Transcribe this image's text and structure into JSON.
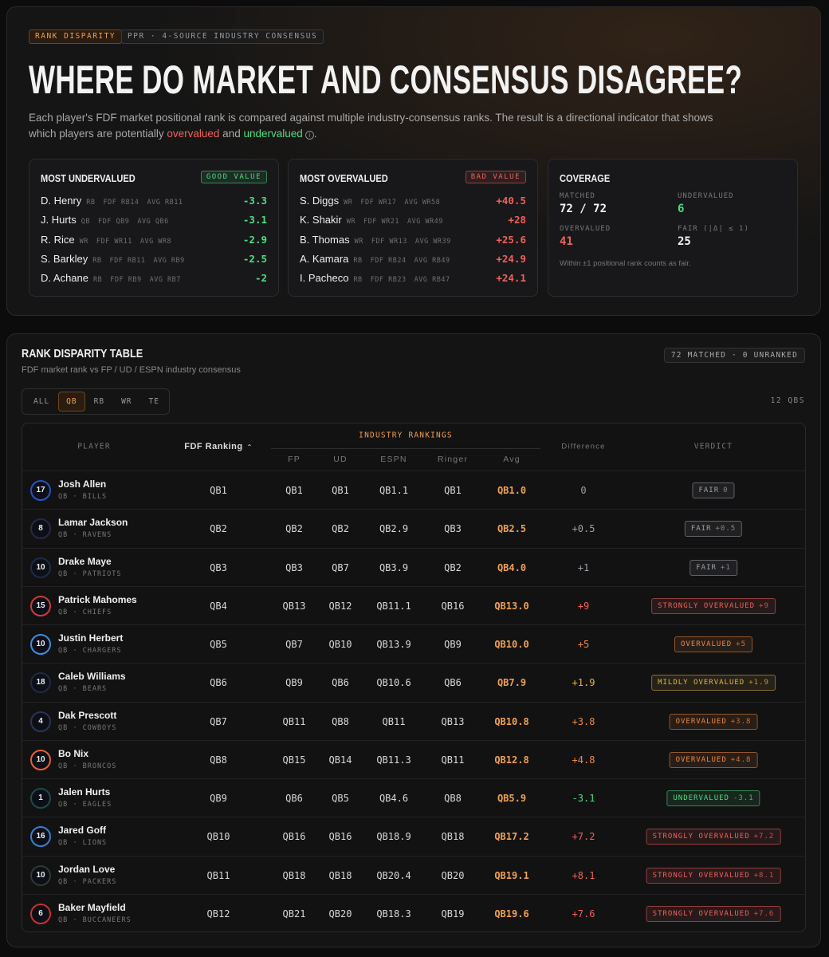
{
  "header": {
    "badges": [
      "RANK DISPARITY",
      "PPR · 4-SOURCE INDUSTRY CONSENSUS"
    ],
    "title": "WHERE DO MARKET AND CONSENSUS DISAGREE?",
    "description": {
      "text": "Each player's FDF market positional rank is compared against multiple industry-consensus ranks. The result is a directional indicator that shows which players are potentially",
      "overvalued": "overvalued",
      "and": "and",
      "undervalued": "undervalued",
      "end": "."
    }
  },
  "cards": [
    {
      "title": "MOST UNDERVALUED",
      "tag": "GOOD VALUE",
      "color": "#4ade80",
      "rows": [
        {
          "name": "D. Henry",
          "pos": "RB",
          "fdf": "FDF RB14",
          "avg": "AVG RB11",
          "diff": "-3.3"
        },
        {
          "name": "J. Hurts",
          "pos": "QB",
          "fdf": "FDF QB9",
          "avg": "AVG QB6",
          "diff": "-3.1"
        },
        {
          "name": "R. Rice",
          "pos": "WR",
          "fdf": "FDF WR11",
          "avg": "AVG WR8",
          "diff": "-2.9"
        },
        {
          "name": "S. Barkley",
          "pos": "RB",
          "fdf": "FDF RB11",
          "avg": "AVG RB9",
          "diff": "-2.5"
        },
        {
          "name": "D. Achane",
          "pos": "RB",
          "fdf": "FDF RB9",
          "avg": "AVG RB7",
          "diff": "-2"
        }
      ]
    },
    {
      "title": "MOST OVERVALUED",
      "tag": "BAD VALUE",
      "color": "#f0605a",
      "rows": [
        {
          "name": "S. Diggs",
          "pos": "WR",
          "fdf": "FDF WR17",
          "avg": "AVG WR58",
          "diff": "+40.5"
        },
        {
          "name": "K. Shakir",
          "pos": "WR",
          "fdf": "FDF WR21",
          "avg": "AVG WR49",
          "diff": "+28"
        },
        {
          "name": "B. Thomas",
          "pos": "WR",
          "fdf": "FDF WR13",
          "avg": "AVG WR39",
          "diff": "+25.6"
        },
        {
          "name": "A. Kamara",
          "pos": "RB",
          "fdf": "FDF RB24",
          "avg": "AVG RB49",
          "diff": "+24.9"
        },
        {
          "name": "I. Pacheco",
          "pos": "RB",
          "fdf": "FDF RB23",
          "avg": "AVG RB47",
          "diff": "+24.1"
        }
      ]
    }
  ],
  "coverage": {
    "title": "COVERAGE",
    "stats": [
      {
        "label": "MATCHED",
        "value": "72 / 72",
        "color": "#f2f2f2"
      },
      {
        "label": "UNDERVALUED",
        "value": 6,
        "color": "#4ade80"
      },
      {
        "label": "OVERVALUED",
        "value": 41,
        "color": "#f0605a"
      },
      {
        "label": "FAIR (|Δ| ≤ 1)",
        "value": 25,
        "color": "#f2f2f2"
      }
    ],
    "note": "Within ±1 positional rank counts as fair."
  },
  "table": {
    "title": "RANK DISPARITY TABLE",
    "subtitle": "FDF market rank vs FP / UD / ESPN industry consensus",
    "badge": "72 MATCHED · 0 UNRANKED",
    "tabs": [
      "ALL",
      "QB",
      "RB",
      "WR",
      "TE"
    ],
    "active_tab": 1,
    "count": "12 QBS",
    "columns": {
      "player": "PLAYER",
      "fdf": "FDF Ranking",
      "group": "INDUSTRY RANKINGS",
      "sources": [
        "FP",
        "UD",
        "ESPN",
        "Ringer",
        "Avg"
      ],
      "difference": "Difference",
      "verdict": "VERDICT"
    },
    "rows": [
      {
        "number": 17,
        "name": "Josh Allen",
        "meta": "QB · BILLS",
        "fdf": "QB1",
        "ranks": [
          "QB1",
          "QB1",
          "QB1.1",
          "QB1",
          "QB1.0"
        ],
        "difference": "0",
        "verdict": "FAIR",
        "verdict_value": "0",
        "ring": "#2553c4",
        "color": "#9aa0a6"
      },
      {
        "number": 8,
        "name": "Lamar Jackson",
        "meta": "QB · RAVENS",
        "fdf": "QB2",
        "ranks": [
          "QB2",
          "QB2",
          "QB2.9",
          "QB3",
          "QB2.5"
        ],
        "difference": "+0.5",
        "verdict": "FAIR",
        "verdict_value": "+0.5",
        "ring": "#2b2840",
        "color": "#9aa0a6"
      },
      {
        "number": 10,
        "name": "Drake Maye",
        "meta": "QB · PATRIOTS",
        "fdf": "QB3",
        "ranks": [
          "QB3",
          "QB7",
          "QB3.9",
          "QB2",
          "QB4.0"
        ],
        "difference": "+1",
        "verdict": "FAIR",
        "verdict_value": "+1",
        "ring": "#1f2c44",
        "color": "#9aa0a6"
      },
      {
        "number": 15,
        "name": "Patrick Mahomes",
        "meta": "QB · CHIEFS",
        "fdf": "QB4",
        "ranks": [
          "QB13",
          "QB12",
          "QB11.1",
          "QB16",
          "QB13.0"
        ],
        "difference": "+9",
        "verdict": "STRONGLY OVERVALUED",
        "verdict_value": "+9",
        "ring": "#d03a3a",
        "color": "#f0605a"
      },
      {
        "number": 10,
        "name": "Justin Herbert",
        "meta": "QB · CHARGERS",
        "fdf": "QB5",
        "ranks": [
          "QB7",
          "QB10",
          "QB13.9",
          "QB9",
          "QB10.0"
        ],
        "difference": "+5",
        "verdict": "OVERVALUED",
        "verdict_value": "+5",
        "ring": "#3d8fe0",
        "color": "#f0883e"
      },
      {
        "number": 18,
        "name": "Caleb Williams",
        "meta": "QB · BEARS",
        "fdf": "QB6",
        "ranks": [
          "QB9",
          "QB6",
          "QB10.6",
          "QB6",
          "QB7.9"
        ],
        "difference": "+1.9",
        "verdict": "MILDLY OVERVALUED",
        "verdict_value": "+1.9",
        "ring": "#1f2a44",
        "color": "#e3b341"
      },
      {
        "number": 4,
        "name": "Dak Prescott",
        "meta": "QB · COWBOYS",
        "fdf": "QB7",
        "ranks": [
          "QB11",
          "QB8",
          "QB11",
          "QB13",
          "QB10.8"
        ],
        "difference": "+3.8",
        "verdict": "OVERVALUED",
        "verdict_value": "+3.8",
        "ring": "#2a3550",
        "color": "#f0883e"
      },
      {
        "number": 10,
        "name": "Bo Nix",
        "meta": "QB · BRONCOS",
        "fdf": "QB8",
        "ranks": [
          "QB15",
          "QB14",
          "QB11.3",
          "QB11",
          "QB12.8"
        ],
        "difference": "+4.8",
        "verdict": "OVERVALUED",
        "verdict_value": "+4.8",
        "ring": "#e8622c",
        "color": "#f0883e"
      },
      {
        "number": 1,
        "name": "Jalen Hurts",
        "meta": "QB · EAGLES",
        "fdf": "QB9",
        "ranks": [
          "QB6",
          "QB5",
          "QB4.6",
          "QB8",
          "QB5.9"
        ],
        "difference": "-3.1",
        "verdict": "UNDERVALUED",
        "verdict_value": "-3.1",
        "ring": "#1f4a4a",
        "color": "#4ade80"
      },
      {
        "number": 16,
        "name": "Jared Goff",
        "meta": "QB · LIONS",
        "fdf": "QB10",
        "ranks": [
          "QB16",
          "QB16",
          "QB18.9",
          "QB18",
          "QB17.2"
        ],
        "difference": "+7.2",
        "verdict": "STRONGLY OVERVALUED",
        "verdict_value": "+7.2",
        "ring": "#3a7fd0",
        "color": "#f0605a"
      },
      {
        "number": 10,
        "name": "Jordan Love",
        "meta": "QB · PACKERS",
        "fdf": "QB11",
        "ranks": [
          "QB18",
          "QB18",
          "QB20.4",
          "QB20",
          "QB19.1"
        ],
        "difference": "+8.1",
        "verdict": "STRONGLY OVERVALUED",
        "verdict_value": "+8.1",
        "ring": "#2e3a32",
        "color": "#f0605a"
      },
      {
        "number": 6,
        "name": "Baker Mayfield",
        "meta": "QB · BUCCANEERS",
        "fdf": "QB12",
        "ranks": [
          "QB21",
          "QB20",
          "QB18.3",
          "QB19",
          "QB19.6"
        ],
        "difference": "+7.6",
        "verdict": "STRONGLY OVERVALUED",
        "verdict_value": "+7.6",
        "ring": "#c83030",
        "color": "#f0605a"
      }
    ]
  }
}
